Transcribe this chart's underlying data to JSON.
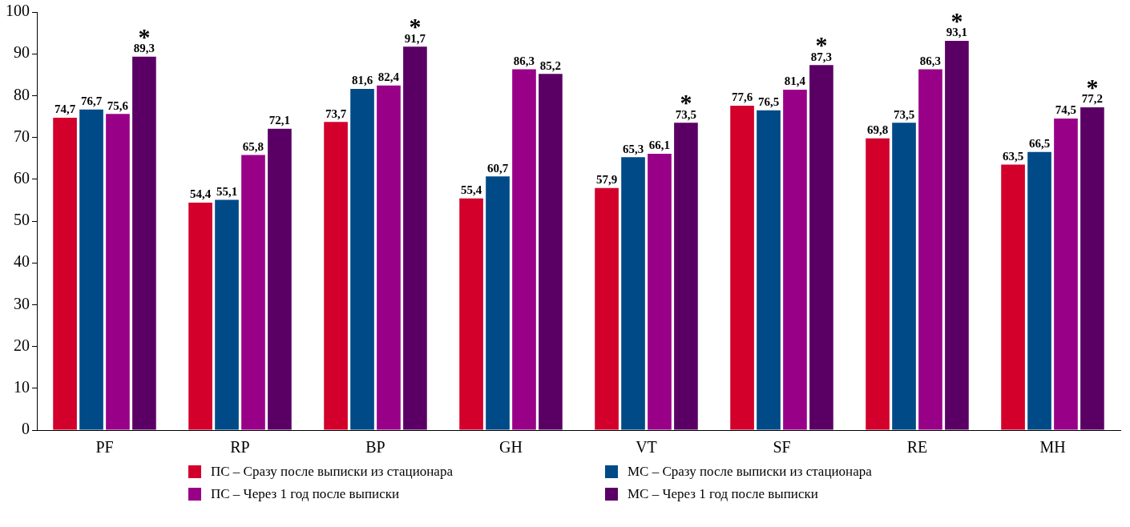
{
  "chart_data": {
    "type": "bar",
    "categories": [
      "PF",
      "RP",
      "BP",
      "GH",
      "VT",
      "SF",
      "RE",
      "MH"
    ],
    "series": [
      {
        "name": "ПС – Сразу после выписки из стационара",
        "color": "#d2002b",
        "values": [
          74.7,
          54.4,
          73.7,
          55.4,
          57.9,
          77.6,
          69.8,
          63.5
        ],
        "value_labels": [
          "74,7",
          "54,4",
          "73,7",
          "55,4",
          "57,9",
          "77,6",
          "69,8",
          "63,5"
        ]
      },
      {
        "name": "МС – Сразу после выписки из стационара",
        "color": "#004a87",
        "values": [
          76.7,
          55.1,
          81.6,
          60.7,
          65.3,
          76.5,
          73.5,
          66.5
        ],
        "value_labels": [
          "76,7",
          "55,1",
          "81,6",
          "60,7",
          "65,3",
          "76,5",
          "73,5",
          "66,5"
        ]
      },
      {
        "name": "ПС – Через 1 год после выписки",
        "color": "#990088",
        "values": [
          75.6,
          65.8,
          82.4,
          86.3,
          66.1,
          81.4,
          86.3,
          74.5
        ],
        "value_labels": [
          "75,6",
          "65,8",
          "82,4",
          "86,3",
          "66,1",
          "81,4",
          "86,3",
          "74,5"
        ]
      },
      {
        "name": "МС – Через 1 год после выписки",
        "color": "#5a0065",
        "values": [
          89.3,
          72.1,
          91.7,
          85.2,
          73.5,
          87.3,
          93.1,
          77.2
        ],
        "value_labels": [
          "89,3",
          "72,1",
          "91,7",
          "85,2",
          "73,5",
          "87,3",
          "93,1",
          "77,2"
        ]
      }
    ],
    "annotations": [
      "*",
      "*",
      "*",
      "*",
      "*",
      "*"
    ],
    "ylim": [
      0,
      100
    ],
    "yticks": [
      0,
      10,
      20,
      30,
      40,
      50,
      60,
      70,
      80,
      90,
      100
    ],
    "grid": false,
    "legend": "bottom"
  }
}
